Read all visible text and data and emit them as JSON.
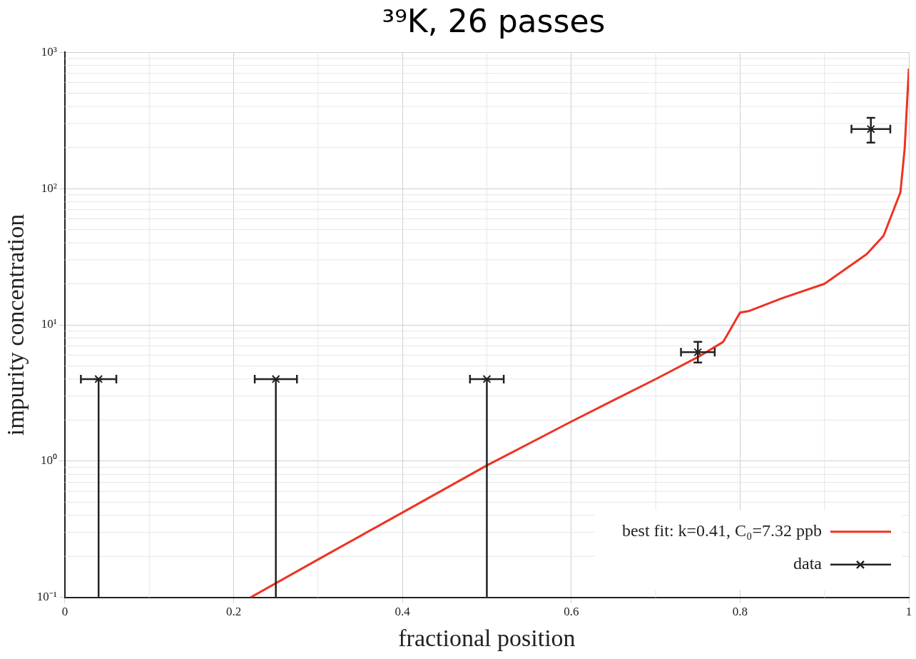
{
  "chart_data": {
    "type": "scatter",
    "title": "³⁹K, 26 passes",
    "xlabel": "fractional position",
    "ylabel": "impurity concentration",
    "log": "y",
    "grid": true,
    "legend": "bottom right",
    "marker": "cross",
    "xlim": [
      0,
      1
    ],
    "xticks": [
      0,
      0.2,
      0.4,
      0.6,
      0.8,
      1
    ],
    "ylim": [
      0.1,
      1000
    ],
    "yticks": [
      {
        "value": 0.1,
        "label": "10⁻¹"
      },
      {
        "value": 1,
        "label": "10⁰"
      },
      {
        "value": 10,
        "label": "10¹"
      },
      {
        "value": 100,
        "label": "10²"
      },
      {
        "value": 1000,
        "label": "10³"
      }
    ],
    "series": [
      {
        "name": "best fit: k=0.41, C₀=7.32 ppb",
        "type": "line",
        "color": "#ee3322",
        "marker": "none",
        "line_style": "solid",
        "x": [
          0.22,
          0.3,
          0.4,
          0.5,
          0.6,
          0.65,
          0.7,
          0.75,
          0.78,
          0.8,
          0.81,
          0.85,
          0.9,
          0.95,
          0.97,
          0.99,
          0.995,
          1.0
        ],
        "values": [
          0.1,
          0.19,
          0.42,
          0.93,
          1.95,
          2.8,
          4,
          5.8,
          7.5,
          12.3,
          12.6,
          15.7,
          20,
          33,
          45,
          94,
          196,
          760
        ]
      },
      {
        "name": "data",
        "color": "#222222",
        "x": [
          0.04,
          0.25,
          0.5,
          0.75,
          0.955
        ],
        "values": [
          4,
          4,
          4,
          6.3,
          273
        ],
        "errors": [
          [
            0.1,
            4
          ],
          [
            0.1,
            4
          ],
          [
            0.1,
            4
          ],
          [
            5.3,
            7.5
          ],
          [
            217,
            330
          ]
        ],
        "xerrors": [
          0.021,
          0.025,
          0.02,
          0.02,
          0.023
        ]
      }
    ]
  }
}
